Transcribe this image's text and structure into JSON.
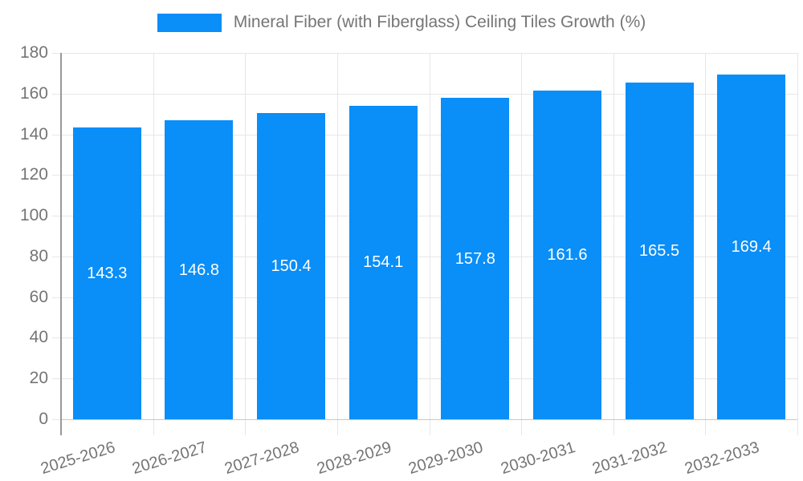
{
  "legend": {
    "label": "Mineral Fiber (with Fiberglass) Ceiling Tiles Growth (%)"
  },
  "chart_data": {
    "type": "bar",
    "title": "Mineral Fiber (with Fiberglass) Ceiling Tiles Growth (%)",
    "series_name": "Mineral Fiber (with Fiberglass) Ceiling Tiles Growth (%)",
    "categories": [
      "2025-2026",
      "2026-2027",
      "2027-2028",
      "2028-2029",
      "2029-2030",
      "2030-2031",
      "2031-2032",
      "2032-2033"
    ],
    "values": [
      143.3,
      146.8,
      150.4,
      154.1,
      157.8,
      161.6,
      165.5,
      169.4
    ],
    "value_labels": [
      "143.3",
      "146.8",
      "150.4",
      "154.1",
      "157.8",
      "161.6",
      "165.5",
      "169.4"
    ],
    "xlabel": "",
    "ylabel": "",
    "ylim": [
      0,
      180
    ],
    "yticks": [
      0,
      20,
      40,
      60,
      80,
      100,
      120,
      140,
      160,
      180
    ],
    "grid": true,
    "legend_position": "top",
    "colors": {
      "bar": "#0a8ef7",
      "value_label": "#ffffff",
      "axis_text": "#757575",
      "gridline": "#e6e6e6",
      "baseline": "#c9c9c9",
      "axis_line": "#999999",
      "background": "#ffffff"
    },
    "x_label_rotation_deg": -17
  }
}
